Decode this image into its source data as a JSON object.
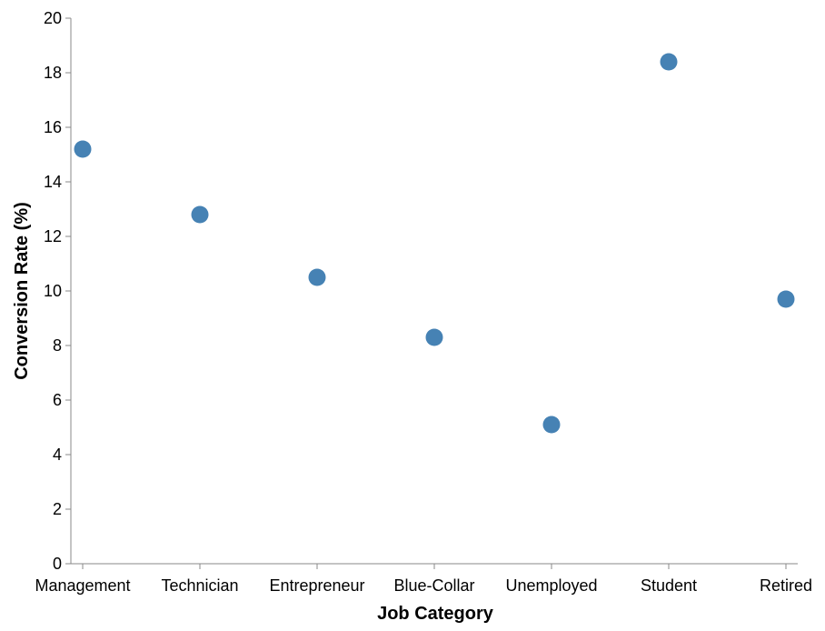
{
  "chart_data": {
    "type": "scatter",
    "title": "",
    "xlabel": "Job Category",
    "ylabel": "Conversion Rate (%)",
    "categories": [
      "Management",
      "Technician",
      "Entrepreneur",
      "Blue-Collar",
      "Unemployed",
      "Student",
      "Retired"
    ],
    "values": [
      15.2,
      12.8,
      10.5,
      8.3,
      5.1,
      18.4,
      9.7
    ],
    "ylim": [
      0,
      20
    ],
    "yticks": [
      "0",
      "2",
      "4",
      "6",
      "8",
      "10",
      "12",
      "14",
      "16",
      "18",
      "20"
    ],
    "grid": false,
    "legend": "none",
    "colors": {
      "point": "#4682b4",
      "axis": "#888888",
      "text": "#000000"
    }
  }
}
